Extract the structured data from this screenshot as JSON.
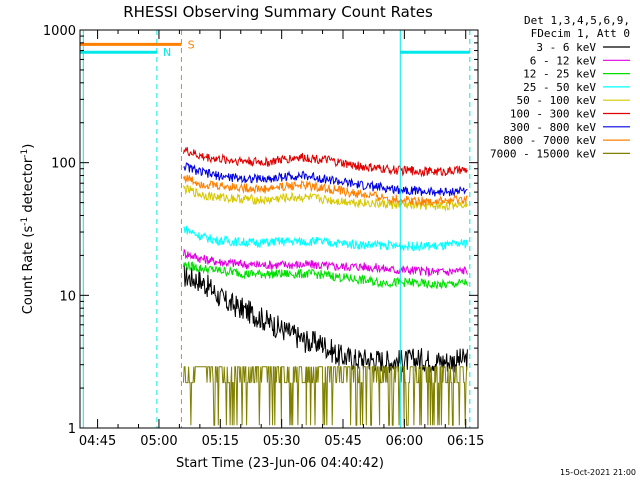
{
  "chart_data": {
    "type": "line",
    "title": "RHESSI Observing Summary Count Rates",
    "xlabel": "Start Time (23-Jun-06 04:40:42)",
    "ylabel_prefix": "Count Rate (s",
    "ylabel_sup1": "-1",
    "ylabel_mid": " detector",
    "ylabel_sup2": "-1",
    "ylabel_suffix": ")",
    "yscale": "log",
    "ylim": [
      1,
      1000
    ],
    "xlim_minutes": [
      40.7,
      138
    ],
    "x_ticks": [
      {
        "m": 45,
        "label": "04:45"
      },
      {
        "m": 60,
        "label": "05:00"
      },
      {
        "m": 75,
        "label": "05:15"
      },
      {
        "m": 90,
        "label": "05:30"
      },
      {
        "m": 105,
        "label": "05:45"
      },
      {
        "m": 120,
        "label": "06:00"
      },
      {
        "m": 135,
        "label": "06:15"
      }
    ],
    "y_ticks": [
      {
        "v": 1,
        "label": "1"
      },
      {
        "v": 10,
        "label": "10"
      },
      {
        "v": 100,
        "label": "100"
      },
      {
        "v": 1000,
        "label": "1000"
      }
    ],
    "legend_header": [
      "Det 1,3,4,5,6,9,",
      "FDecim 1, Att 0"
    ],
    "series": [
      {
        "name": "3 - 6 keV",
        "color": "#000000",
        "points": [
          [
            66,
            14
          ],
          [
            70,
            13
          ],
          [
            73,
            11
          ],
          [
            76,
            9
          ],
          [
            80,
            8
          ],
          [
            84,
            7
          ],
          [
            88,
            6
          ],
          [
            92,
            5.2
          ],
          [
            96,
            4.5
          ],
          [
            100,
            4.3
          ],
          [
            104,
            3.5
          ],
          [
            108,
            3.3
          ],
          [
            112,
            3.3
          ],
          [
            116,
            3.2
          ],
          [
            120,
            3.2
          ],
          [
            124,
            3.3
          ],
          [
            128,
            3.2
          ],
          [
            132,
            3.2
          ],
          [
            135.5,
            3.3
          ]
        ]
      },
      {
        "name": "6 - 12 keV",
        "color": "#e000e0",
        "points": [
          [
            66,
            21
          ],
          [
            70,
            19
          ],
          [
            74,
            18
          ],
          [
            78,
            17.5
          ],
          [
            82,
            17
          ],
          [
            86,
            17
          ],
          [
            90,
            17
          ],
          [
            94,
            17
          ],
          [
            98,
            17
          ],
          [
            102,
            16.5
          ],
          [
            106,
            16.5
          ],
          [
            110,
            16.5
          ],
          [
            114,
            16
          ],
          [
            118,
            15.5
          ],
          [
            122,
            15.5
          ],
          [
            126,
            15
          ],
          [
            130,
            15
          ],
          [
            135.5,
            15.5
          ]
        ]
      },
      {
        "name": "12 - 25 keV",
        "color": "#00e000",
        "points": [
          [
            66,
            17
          ],
          [
            70,
            16
          ],
          [
            74,
            15.5
          ],
          [
            78,
            15
          ],
          [
            82,
            14.5
          ],
          [
            86,
            14.5
          ],
          [
            90,
            14.5
          ],
          [
            94,
            14.5
          ],
          [
            98,
            14.5
          ],
          [
            102,
            14
          ],
          [
            106,
            13.5
          ],
          [
            110,
            13
          ],
          [
            114,
            12.5
          ],
          [
            118,
            12.5
          ],
          [
            122,
            12.5
          ],
          [
            126,
            12
          ],
          [
            130,
            12
          ],
          [
            135.5,
            12.5
          ]
        ]
      },
      {
        "name": "25 - 50 keV",
        "color": "#00ffff",
        "points": [
          [
            66,
            32
          ],
          [
            70,
            28
          ],
          [
            74,
            26
          ],
          [
            78,
            25.5
          ],
          [
            82,
            25
          ],
          [
            86,
            25
          ],
          [
            90,
            25.5
          ],
          [
            94,
            25.5
          ],
          [
            98,
            25.5
          ],
          [
            102,
            25
          ],
          [
            106,
            24.5
          ],
          [
            110,
            24
          ],
          [
            114,
            24
          ],
          [
            118,
            23.5
          ],
          [
            122,
            23.5
          ],
          [
            126,
            23.5
          ],
          [
            130,
            23.5
          ],
          [
            135.5,
            25
          ]
        ]
      },
      {
        "name": "50 - 100 keV",
        "color": "#d8c800",
        "points": [
          [
            66,
            64
          ],
          [
            70,
            58
          ],
          [
            74,
            55
          ],
          [
            78,
            54
          ],
          [
            82,
            53
          ],
          [
            86,
            52
          ],
          [
            90,
            54
          ],
          [
            94,
            55
          ],
          [
            98,
            54
          ],
          [
            102,
            52
          ],
          [
            106,
            51
          ],
          [
            110,
            50
          ],
          [
            114,
            49
          ],
          [
            118,
            48
          ],
          [
            122,
            48
          ],
          [
            126,
            47
          ],
          [
            130,
            47
          ],
          [
            135.5,
            50
          ]
        ]
      },
      {
        "name": "100 - 300 keV",
        "color": "#e00000",
        "points": [
          [
            66,
            125
          ],
          [
            70,
            112
          ],
          [
            74,
            107
          ],
          [
            78,
            104
          ],
          [
            82,
            103
          ],
          [
            86,
            100
          ],
          [
            90,
            105
          ],
          [
            94,
            110
          ],
          [
            98,
            108
          ],
          [
            102,
            103
          ],
          [
            106,
            97
          ],
          [
            110,
            93
          ],
          [
            114,
            90
          ],
          [
            118,
            88
          ],
          [
            122,
            87
          ],
          [
            126,
            86
          ],
          [
            130,
            86
          ],
          [
            135.5,
            88
          ]
        ]
      },
      {
        "name": "300 - 800 keV",
        "color": "#0000e0",
        "points": [
          [
            66,
            95
          ],
          [
            70,
            85
          ],
          [
            74,
            80
          ],
          [
            78,
            77
          ],
          [
            82,
            76
          ],
          [
            86,
            75
          ],
          [
            90,
            78
          ],
          [
            94,
            80
          ],
          [
            98,
            78
          ],
          [
            102,
            74
          ],
          [
            106,
            70
          ],
          [
            110,
            67
          ],
          [
            114,
            65
          ],
          [
            118,
            63
          ],
          [
            122,
            62
          ],
          [
            126,
            60
          ],
          [
            130,
            60
          ],
          [
            135.5,
            62
          ]
        ]
      },
      {
        "name": "800 - 7000 keV",
        "color": "#ff8000",
        "points": [
          [
            66,
            78
          ],
          [
            70,
            70
          ],
          [
            74,
            67
          ],
          [
            78,
            66
          ],
          [
            82,
            64
          ],
          [
            86,
            63
          ],
          [
            90,
            66
          ],
          [
            94,
            68
          ],
          [
            98,
            66
          ],
          [
            102,
            63
          ],
          [
            106,
            60
          ],
          [
            110,
            57
          ],
          [
            114,
            55
          ],
          [
            118,
            53
          ],
          [
            122,
            52
          ],
          [
            126,
            51
          ],
          [
            130,
            51
          ],
          [
            135.5,
            53
          ]
        ]
      },
      {
        "name": "7000 - 15000 keV",
        "color": "#808000",
        "points": [
          [
            66,
            2.9
          ],
          [
            72,
            2.9
          ],
          [
            78,
            2.8
          ],
          [
            84,
            2.9
          ],
          [
            90,
            2.9
          ],
          [
            96,
            2.8
          ],
          [
            102,
            2.9
          ],
          [
            108,
            2.8
          ],
          [
            114,
            2.8
          ],
          [
            120,
            2.8
          ],
          [
            126,
            2.9
          ],
          [
            132,
            2.8
          ],
          [
            135.5,
            2.9
          ]
        ]
      }
    ],
    "flags": [
      {
        "label": "S",
        "color": "#ff8000",
        "x0": 40.7,
        "x1": 65.5,
        "y": 780,
        "label_at": 67
      },
      {
        "label": "N",
        "color": "#00e8e8",
        "x0": 40.7,
        "x1": 59.5,
        "y": 680,
        "label_at": 61
      },
      {
        "label": "",
        "color": "#00e8e8",
        "x0": 119,
        "x1": 136,
        "y": 680,
        "label_at": 0
      }
    ],
    "vlines": [
      {
        "m": 41.5,
        "color": "#00e8e8",
        "dash": false
      },
      {
        "m": 59.5,
        "color": "#00e8e8",
        "dash": true
      },
      {
        "m": 65.5,
        "color": "#ff8000",
        "dash": true
      },
      {
        "m": 119,
        "color": "#00e8e8",
        "dash": false
      },
      {
        "m": 136,
        "color": "#00e8e8",
        "dash": true
      }
    ],
    "grid": false,
    "legend_position": "right"
  },
  "timestamp": "15-Oct-2021 21:00"
}
